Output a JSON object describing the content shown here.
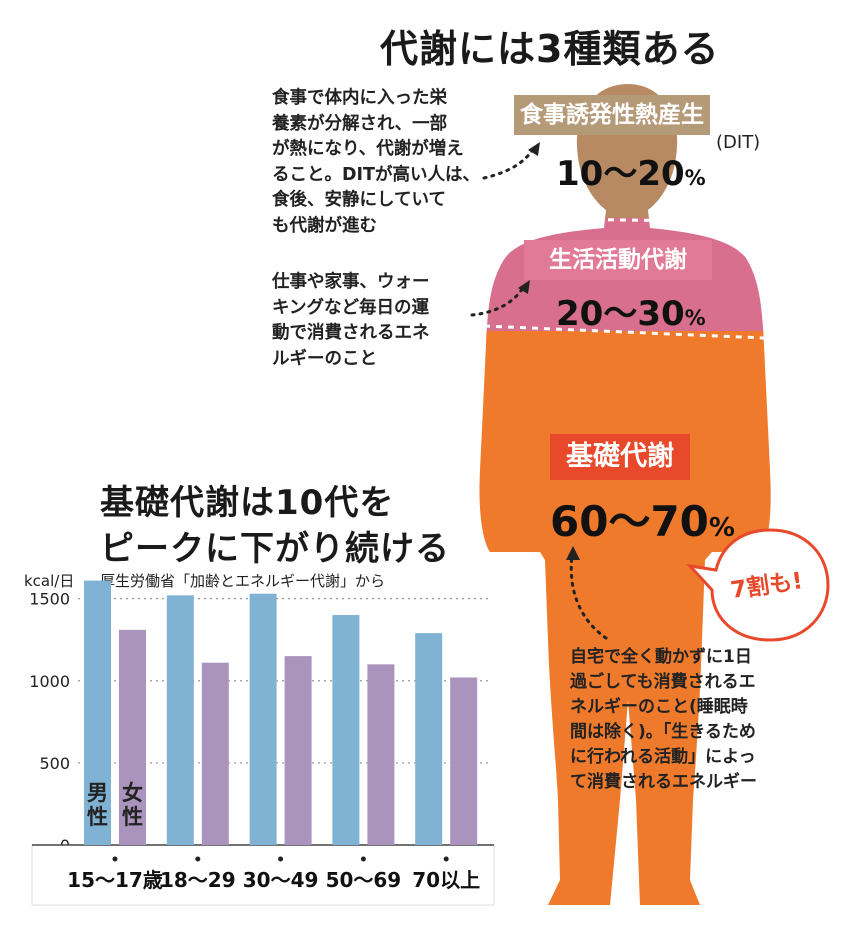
{
  "title": "代謝には3種類ある",
  "silhouette_colors": {
    "head": "#b88a63",
    "chest": "#d86f8e",
    "body": "#ef7a2c"
  },
  "dit": {
    "name": "食事誘発性熱産生",
    "abbr": "(DIT)",
    "range": "10〜20",
    "unit": "%",
    "color": "#b59a78",
    "description": [
      "食事で体内に入った栄",
      "養素が分解され、一部",
      "が熱になり、代謝が増え",
      "ること。DITが高い人は、",
      "食後、安静にしていて",
      "も代謝が進む"
    ]
  },
  "activity": {
    "name": "生活活動代謝",
    "range": "20〜30",
    "unit": "%",
    "color": "#e07a97",
    "description": [
      "仕事や家事、ウォー",
      "キングなど毎日の運",
      "動で消費されるエネ",
      "ルギーのこと"
    ]
  },
  "basal": {
    "name": "基礎代謝",
    "range": "60〜70",
    "unit": "%",
    "color": "#e8492b",
    "callout": "7割も!",
    "description": [
      "自宅で全く動かずに1日",
      "過ごしても消費されるエ",
      "ネルギーのこと(睡眠時",
      "間は除く)。「生きるため",
      "に行われる活動」によっ",
      "て消費されるエネルギー"
    ]
  },
  "chart_heading": [
    "基礎代謝は10代を",
    "ピークに下がり続ける"
  ],
  "chart_data": {
    "type": "bar",
    "title": "基礎代謝は10代をピークに下がり続ける",
    "ylabel": "kcal/日",
    "source": "厚生労働省「加齢とエネルギー代謝」から",
    "categories": [
      "15〜17歳",
      "18〜29",
      "30〜49",
      "50〜69",
      "70以上"
    ],
    "series": [
      {
        "name": "男性",
        "color": "#7fb2d3",
        "values": [
          1610,
          1520,
          1530,
          1400,
          1290
        ]
      },
      {
        "name": "女性",
        "color": "#aa93bd",
        "values": [
          1310,
          1110,
          1150,
          1100,
          1020
        ]
      }
    ],
    "yticks": [
      0,
      500,
      1000,
      1500
    ],
    "ylim": [
      0,
      1650
    ],
    "grid": true
  }
}
